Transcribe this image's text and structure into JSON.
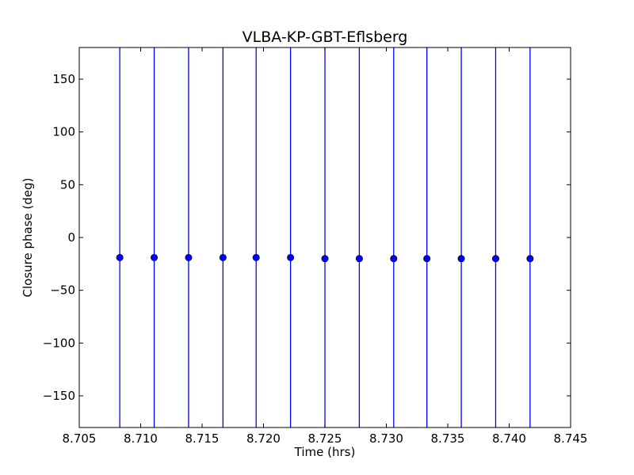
{
  "chart_data": {
    "type": "scatter",
    "title": "VLBA-KP-GBT-Eflsberg",
    "xlabel": "Time (hrs)",
    "ylabel": "Closure phase (deg)",
    "xlim": [
      8.705,
      8.745
    ],
    "ylim": [
      -180,
      180
    ],
    "xticks": [
      "8.705",
      "8.710",
      "8.715",
      "8.720",
      "8.725",
      "8.730",
      "8.735",
      "8.740",
      "8.745"
    ],
    "yticks": [
      "−150",
      "−100",
      "−50",
      "0",
      "50",
      "100",
      "150"
    ],
    "grid": false,
    "legend": "none",
    "marker_color": "#0000ff",
    "errorbar_color": "#0000ff",
    "series": [
      {
        "x": [
          8.7083,
          8.7111,
          8.7139,
          8.7167,
          8.7194,
          8.7222,
          8.725,
          8.7278,
          8.7306,
          8.7333,
          8.7361,
          8.7389,
          8.7417
        ],
        "y": [
          -19,
          -19,
          -19,
          -19,
          -19,
          -19,
          -20,
          -20,
          -20,
          -20,
          -20,
          -20,
          -20
        ],
        "yerr_low": [
          -180,
          -180,
          -180,
          -180,
          -180,
          -180,
          -180,
          -180,
          -180,
          -180,
          -180,
          -180,
          -180
        ],
        "yerr_high": [
          180,
          180,
          180,
          180,
          180,
          180,
          180,
          180,
          180,
          180,
          180,
          180,
          180
        ]
      }
    ]
  }
}
